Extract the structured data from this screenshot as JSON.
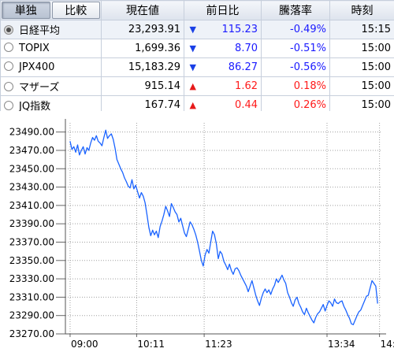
{
  "header": {
    "mode_buttons": [
      "単独",
      "比較"
    ],
    "columns": [
      "現在値",
      "前日比",
      "騰落率",
      "時刻"
    ]
  },
  "rows": [
    {
      "name": "日経平均",
      "price": "23,293.91",
      "direction": "down",
      "arrow": "▼",
      "change": "115.23",
      "pct": "-0.49%",
      "time": "15:15",
      "selected": true
    },
    {
      "name": "TOPIX",
      "price": "1,699.36",
      "direction": "down",
      "arrow": "▼",
      "change": "8.70",
      "pct": "-0.51%",
      "time": "15:00",
      "selected": false
    },
    {
      "name": "JPX400",
      "price": "15,183.29",
      "direction": "down",
      "arrow": "▼",
      "change": "86.27",
      "pct": "-0.56%",
      "time": "15:00",
      "selected": false
    },
    {
      "name": "マザーズ",
      "price": "915.14",
      "direction": "up",
      "arrow": "▲",
      "change": "1.62",
      "pct": "0.18%",
      "time": "15:00",
      "selected": false
    },
    {
      "name": "JQ指数",
      "price": "167.74",
      "direction": "up",
      "arrow": "▲",
      "change": "0.44",
      "pct": "0.26%",
      "time": "15:00",
      "selected": false
    }
  ],
  "colors": {
    "down": "#1a1aff",
    "up": "#ff1a1a",
    "line": "#1a63ff",
    "grid": "#a0a0a0"
  },
  "chart_data": {
    "type": "line",
    "ylim": [
      23270,
      23500
    ],
    "y_ticks": [
      "23490.00",
      "23470.00",
      "23450.00",
      "23430.00",
      "23410.00",
      "23390.00",
      "23370.00",
      "23350.00",
      "23330.00",
      "23310.00",
      "23290.00",
      "23270.00"
    ],
    "y_tick_values": [
      23490,
      23470,
      23450,
      23430,
      23410,
      23390,
      23370,
      23350,
      23330,
      23310,
      23290,
      23270
    ],
    "x_ticks": [
      "09:00",
      "10:11",
      "11:23",
      "13:34",
      "14:"
    ],
    "x_tick_minutes": [
      540,
      611,
      683,
      814,
      870
    ],
    "xlim": [
      535,
      872
    ],
    "series": [
      {
        "x": [
          540,
          542,
          544,
          546,
          548,
          550,
          552,
          554,
          556,
          558,
          560,
          562,
          564,
          566,
          568,
          570,
          572,
          574,
          576,
          578,
          580,
          582,
          584,
          586,
          588,
          590,
          592,
          594,
          596,
          598,
          600,
          602,
          604,
          606,
          608,
          610,
          612,
          614,
          616,
          618,
          620,
          622,
          624,
          626,
          628,
          630,
          632,
          634,
          636,
          638,
          640,
          642,
          644,
          646,
          648,
          650,
          652,
          654,
          656,
          658,
          660,
          662,
          664,
          666,
          668,
          670,
          672,
          674,
          676,
          678,
          680,
          682,
          684,
          686,
          688,
          690,
          692,
          694,
          696,
          698,
          700,
          702,
          704,
          706,
          708,
          710,
          712,
          714,
          716,
          718,
          720,
          722,
          724,
          726,
          728,
          730,
          732,
          734,
          736,
          738,
          740,
          742,
          744,
          746,
          748,
          750,
          752,
          754,
          756,
          758,
          760,
          762,
          764,
          766,
          768,
          770,
          772,
          774,
          776,
          778,
          780,
          782,
          784,
          786,
          788,
          790,
          792,
          794,
          796,
          798,
          800,
          802,
          804,
          806,
          808,
          810,
          812,
          814,
          816,
          818,
          820,
          822,
          824,
          826,
          828,
          830,
          832,
          834,
          836,
          838,
          840,
          842,
          844,
          846,
          848,
          850,
          852,
          854,
          856,
          858,
          860,
          862,
          864,
          866,
          868
        ],
        "y": [
          23480,
          23471,
          23474,
          23468,
          23476,
          23465,
          23470,
          23474,
          23466,
          23473,
          23470,
          23478,
          23484,
          23481,
          23486,
          23480,
          23478,
          23475,
          23484,
          23492,
          23483,
          23486,
          23488,
          23482,
          23472,
          23460,
          23455,
          23450,
          23446,
          23440,
          23436,
          23431,
          23429,
          23438,
          23428,
          23432,
          23425,
          23418,
          23424,
          23420,
          23413,
          23400,
          23386,
          23377,
          23383,
          23378,
          23382,
          23375,
          23387,
          23393,
          23400,
          23409,
          23404,
          23398,
          23412,
          23408,
          23403,
          23400,
          23392,
          23396,
          23388,
          23380,
          23376,
          23384,
          23392,
          23389,
          23384,
          23378,
          23370,
          23360,
          23350,
          23344,
          23356,
          23362,
          23358,
          23370,
          23382,
          23378,
          23368,
          23352,
          23360,
          23357,
          23349,
          23345,
          23340,
          23346,
          23339,
          23335,
          23341,
          23342,
          23339,
          23334,
          23330,
          23326,
          23322,
          23316,
          23322,
          23328,
          23320,
          23312,
          23306,
          23301,
          23309,
          23315,
          23319,
          23315,
          23318,
          23313,
          23319,
          23323,
          23330,
          23326,
          23330,
          23334,
          23329,
          23325,
          23315,
          23310,
          23304,
          23300,
          23307,
          23310,
          23303,
          23299,
          23294,
          23291,
          23298,
          23293,
          23289,
          23285,
          23282,
          23288,
          23292,
          23294,
          23298,
          23302,
          23295,
          23301,
          23306,
          23304,
          23300,
          23308,
          23304,
          23303,
          23305,
          23306,
          23300,
          23296,
          23291,
          23287,
          23281,
          23280,
          23285,
          23290,
          23294,
          23296,
          23301,
          23306,
          23311,
          23312,
          23320,
          23328,
          23325,
          23322,
          23303
        ]
      }
    ]
  }
}
